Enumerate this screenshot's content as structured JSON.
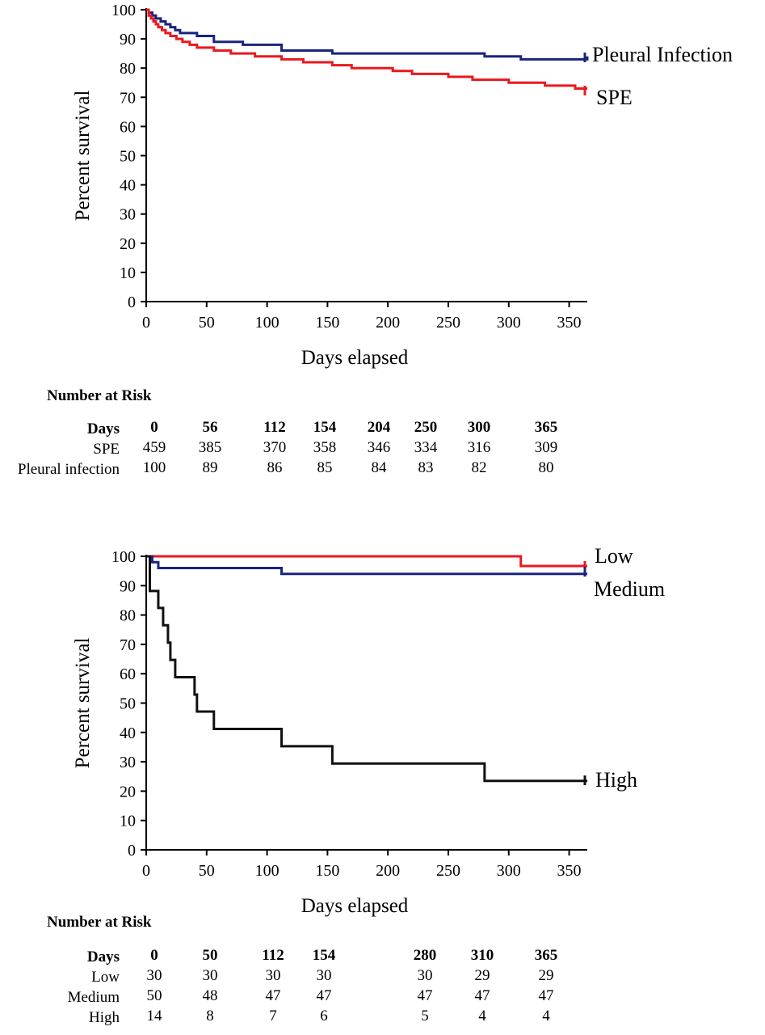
{
  "charts": [
    {
      "chart_data": {
        "type": "line",
        "step": true,
        "xlabel": "Days elapsed",
        "ylabel": "Percent survival",
        "xlim": [
          0,
          365
        ],
        "ylim": [
          0,
          100
        ],
        "xticks": [
          0,
          50,
          100,
          150,
          200,
          250,
          300,
          350
        ],
        "yticks": [
          0,
          10,
          20,
          30,
          40,
          50,
          60,
          70,
          80,
          90,
          100
        ],
        "grid": false,
        "series": [
          {
            "name": "Pleural Infection",
            "color": "#1a237e",
            "x": [
              0,
              2,
              5,
              8,
              12,
              16,
              20,
              24,
              28,
              42,
              56,
              80,
              112,
              154,
              204,
              250,
              280,
              310,
              365
            ],
            "y": [
              100,
              99,
              98,
              97,
              96,
              95,
              94,
              93,
              92,
              91,
              89,
              88,
              86,
              85,
              85,
              85,
              84,
              83,
              84
            ]
          },
          {
            "name": "SPE",
            "color": "#e8191f",
            "x": [
              0,
              2,
              4,
              6,
              8,
              10,
              13,
              16,
              20,
              25,
              30,
              36,
              42,
              56,
              70,
              90,
              112,
              130,
              154,
              170,
              204,
              220,
              250,
              270,
              300,
              330,
              355,
              365
            ],
            "y": [
              100,
              98,
              97,
              96,
              95,
              94,
              93,
              92,
              91,
              90,
              89,
              88,
              87,
              86,
              85,
              84,
              83,
              82,
              81,
              80,
              79,
              78,
              77,
              76,
              75,
              74,
              73,
              73
            ]
          }
        ]
      },
      "risk_table": {
        "title": "Number at Risk",
        "header_label": "Days",
        "days": [
          "0",
          "56",
          "112",
          "154",
          "204",
          "250",
          "300",
          "365"
        ],
        "rows": [
          {
            "label": "SPE",
            "values": [
              "459",
              "385",
              "370",
              "358",
              "346",
              "334",
              "316",
              "309"
            ]
          },
          {
            "label": "Pleural infection",
            "values": [
              "100",
              "89",
              "86",
              "85",
              "84",
              "83",
              "82",
              "80"
            ]
          }
        ]
      }
    },
    {
      "chart_data": {
        "type": "line",
        "step": true,
        "xlabel": "Days elapsed",
        "ylabel": "Percent survival",
        "xlim": [
          0,
          365
        ],
        "ylim": [
          0,
          100
        ],
        "xticks": [
          0,
          50,
          100,
          150,
          200,
          250,
          300,
          350
        ],
        "yticks": [
          0,
          10,
          20,
          30,
          40,
          50,
          60,
          70,
          80,
          90,
          100
        ],
        "grid": false,
        "series": [
          {
            "name": "Low",
            "color": "#e8191f",
            "x": [
              0,
              310,
              365
            ],
            "y": [
              100,
              96.7,
              96.7
            ]
          },
          {
            "name": "Medium",
            "color": "#1a237e",
            "x": [
              0,
              5,
              10,
              112,
              365
            ],
            "y": [
              100,
              98,
              96,
              94,
              94
            ]
          },
          {
            "name": "High",
            "color": "#111111",
            "x": [
              0,
              3,
              10,
              14,
              18,
              20,
              24,
              40,
              42,
              56,
              112,
              154,
              280,
              365
            ],
            "y": [
              100,
              88.2,
              82.4,
              76.5,
              70.6,
              64.7,
              58.8,
              52.9,
              47.1,
              41.2,
              35.3,
              29.4,
              23.5,
              23.5
            ]
          }
        ]
      },
      "risk_table": {
        "title": "Number at Risk",
        "header_label": "Days",
        "days": [
          "0",
          "50",
          "112",
          "154",
          "280",
          "310",
          "365"
        ],
        "rows": [
          {
            "label": "Low",
            "values": [
              "30",
              "30",
              "30",
              "30",
              "30",
              "29",
              "29"
            ]
          },
          {
            "label": "Medium",
            "values": [
              "50",
              "48",
              "47",
              "47",
              "47",
              "47",
              "47"
            ]
          },
          {
            "label": "High",
            "values": [
              "14",
              "8",
              "7",
              "6",
              "5",
              "4",
              "4"
            ]
          }
        ]
      }
    }
  ]
}
